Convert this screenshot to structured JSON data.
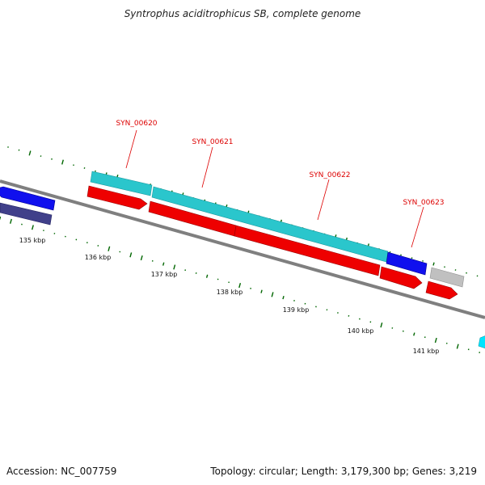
{
  "title": "Syntrophus aciditrophicus SB, complete genome",
  "footer": {
    "accession": "Accession: NC_007759",
    "summary": "Topology: circular; Length: 3,179,300 bp; Genes: 3,219"
  },
  "colors": {
    "backbone": "#7f7f7f",
    "cds_forward": "#2ac6cc",
    "cds_reverse": "#ee0000",
    "gene_blue": "#1010ee",
    "gene_navy": "#40408a",
    "gene_grey": "#c0c0c0",
    "gene_cyan": "#00e5ff",
    "gc_marks": "#006600",
    "label": "#dd0000"
  },
  "gene_labels": [
    {
      "id": "syn-00620",
      "text": "SYN_00620"
    },
    {
      "id": "syn-00621",
      "text": "SYN_00621"
    },
    {
      "id": "syn-00622",
      "text": "SYN_00622"
    },
    {
      "id": "syn-00623",
      "text": "SYN_00623"
    }
  ],
  "tick_labels": [
    {
      "id": "135",
      "text": "135 kbp"
    },
    {
      "id": "136",
      "text": "136 kbp"
    },
    {
      "id": "137",
      "text": "137 kbp"
    },
    {
      "id": "138",
      "text": "138 kbp"
    },
    {
      "id": "139",
      "text": "139 kbp"
    },
    {
      "id": "140",
      "text": "140 kbp"
    },
    {
      "id": "141",
      "text": "141 kbp"
    }
  ]
}
